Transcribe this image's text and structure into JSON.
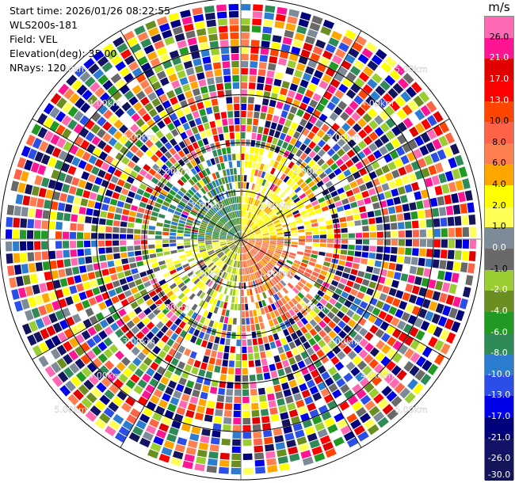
{
  "info": {
    "start_time": "Start time: 2026/01/26 08:22:55",
    "station": "WLS200s-181",
    "field": "Field: VEL",
    "elevation": "Elevation(deg): 35.00",
    "nrays": "NRays: 120"
  },
  "colorbar": {
    "unit": "m/s",
    "levels": [
      {
        "label": "-30.0",
        "color": "#14145a"
      },
      {
        "label": "-26.0",
        "color": "#121266"
      },
      {
        "label": "-21.0",
        "color": "#00007a"
      },
      {
        "label": "-17.0",
        "color": "#0000e8"
      },
      {
        "label": "-13.0",
        "color": "#2a4ee6"
      },
      {
        "label": "-10.0",
        "color": "#2c7cd0"
      },
      {
        "label": "-8.0",
        "color": "#2e8b57"
      },
      {
        "label": "-6.0",
        "color": "#229922"
      },
      {
        "label": "-4.0",
        "color": "#6b8e23"
      },
      {
        "label": "-2.0",
        "color": "#9acd32"
      },
      {
        "label": "-1.0",
        "color": "#696969"
      },
      {
        "label": "0.0",
        "color": "#7d8b99"
      },
      {
        "label": "1.0",
        "color": "#ffff55"
      },
      {
        "label": "2.0",
        "color": "#ffff00"
      },
      {
        "label": "4.0",
        "color": "#ffa500"
      },
      {
        "label": "6.0",
        "color": "#ff7f50"
      },
      {
        "label": "8.0",
        "color": "#ff6347"
      },
      {
        "label": "10.0",
        "color": "#ff4500"
      },
      {
        "label": "13.0",
        "color": "#ff0000"
      },
      {
        "label": "17.0",
        "color": "#e00000"
      },
      {
        "label": "21.0",
        "color": "#ff1493"
      },
      {
        "label": "26.0",
        "color": "#ff69b4"
      }
    ]
  },
  "chart_data": {
    "type": "heatmap",
    "projection": "polar PPI",
    "field": "VEL",
    "units": "m/s",
    "rays": 120,
    "azimuth_range_deg": [
      0,
      360
    ],
    "range_rings_km": [
      1.0,
      2.0,
      3.0,
      4.0,
      5.0
    ],
    "ring_labels": [
      "1.00km",
      "2.00km",
      "3.00km",
      "4.00km",
      "5.00km"
    ],
    "spoke_interval_deg": 30,
    "inner_coherent_region_km": 1.0,
    "approx_pattern": [
      {
        "sector_deg": "0-90 (north-east)",
        "velocity_m_s": "1 to 4"
      },
      {
        "sector_deg": "90-180 (south-east)",
        "velocity_m_s": "4 to 8"
      },
      {
        "sector_deg": "180-270 (south-west)",
        "velocity_m_s": "-2 to 2"
      },
      {
        "sector_deg": "270-360 (north-west)",
        "velocity_m_s": "-10 to -4"
      }
    ],
    "outer_region": "noisy / aliased values spanning full scale -30 to 26"
  }
}
